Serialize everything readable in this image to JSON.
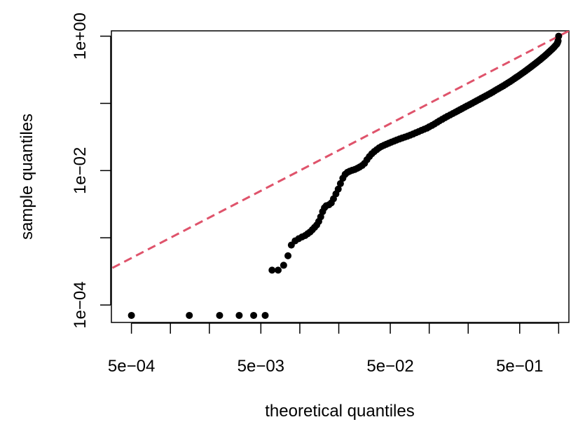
{
  "chart_data": {
    "type": "scatter",
    "title": "",
    "xlabel": "theoretical quantiles",
    "ylabel": "sample quantiles",
    "x_scale": "log10",
    "y_scale": "log10",
    "xlim": [
      0.00035,
      1.2
    ],
    "ylim": [
      5.5e-05,
      1.2
    ],
    "x_ticks": [
      0.0005,
      0.001,
      0.002,
      0.005,
      0.01,
      0.02,
      0.05,
      0.1,
      0.2,
      0.5,
      1
    ],
    "x_tick_labels": [
      {
        "value": 0.0005,
        "label": "5e−04"
      },
      {
        "value": 0.005,
        "label": "5e−03"
      },
      {
        "value": 0.05,
        "label": "5e−02"
      },
      {
        "value": 0.5,
        "label": "5e−01"
      }
    ],
    "y_ticks": [
      0.0001,
      0.001,
      0.01,
      0.1,
      1
    ],
    "y_tick_labels": [
      {
        "value": 0.0001,
        "label": "1e−04"
      },
      {
        "value": 0.01,
        "label": "1e−02"
      },
      {
        "value": 1,
        "label": "1e+00"
      }
    ],
    "grid": false,
    "reference_line": {
      "style": "dashed",
      "color": "#DF536B",
      "slope": 1,
      "intercept": 0
    },
    "point_color": "#000000",
    "points": [
      [
        0.0005,
        7e-05
      ],
      [
        0.0014,
        7e-05
      ],
      [
        0.0024,
        7e-05
      ],
      [
        0.0034,
        7e-05
      ],
      [
        0.0044,
        7e-05
      ],
      [
        0.0054,
        7e-05
      ],
      [
        0.0061,
        0.00033
      ],
      [
        0.0068,
        0.00033
      ],
      [
        0.0075,
        0.00039
      ],
      [
        0.0081,
        0.00054
      ],
      [
        0.0086,
        0.00078
      ],
      [
        0.0092,
        0.0009
      ],
      [
        0.0098,
        0.00097
      ],
      [
        0.0104,
        0.00103
      ],
      [
        0.011,
        0.00108
      ],
      [
        0.0115,
        0.00115
      ],
      [
        0.012,
        0.00122
      ],
      [
        0.0125,
        0.00132
      ],
      [
        0.013,
        0.00143
      ],
      [
        0.0135,
        0.00155
      ],
      [
        0.014,
        0.00175
      ],
      [
        0.0145,
        0.00205
      ],
      [
        0.015,
        0.00245
      ],
      [
        0.0155,
        0.0028
      ],
      [
        0.016,
        0.003
      ],
      [
        0.0168,
        0.0031
      ],
      [
        0.0175,
        0.0033
      ],
      [
        0.0182,
        0.0038
      ],
      [
        0.019,
        0.0045
      ],
      [
        0.0198,
        0.0053
      ],
      [
        0.0206,
        0.0064
      ],
      [
        0.0215,
        0.0077
      ],
      [
        0.0224,
        0.0088
      ],
      [
        0.0233,
        0.0094
      ],
      [
        0.0243,
        0.0098
      ],
      [
        0.0254,
        0.0101
      ],
      [
        0.0266,
        0.0104
      ],
      [
        0.0278,
        0.0108
      ],
      [
        0.029,
        0.0113
      ],
      [
        0.0303,
        0.0119
      ],
      [
        0.0316,
        0.0128
      ],
      [
        0.033,
        0.0145
      ],
      [
        0.0345,
        0.0162
      ],
      [
        0.036,
        0.0178
      ],
      [
        0.0376,
        0.0192
      ],
      [
        0.0393,
        0.0205
      ],
      [
        0.041,
        0.0218
      ],
      [
        0.0428,
        0.0229
      ],
      [
        0.0447,
        0.0238
      ],
      [
        0.0467,
        0.0247
      ],
      [
        0.0488,
        0.0256
      ],
      [
        0.051,
        0.0265
      ],
      [
        0.0535,
        0.0275
      ],
      [
        0.056,
        0.0285
      ],
      [
        0.0588,
        0.0295
      ],
      [
        0.0617,
        0.0305
      ],
      [
        0.0648,
        0.0315
      ],
      [
        0.068,
        0.0325
      ],
      [
        0.0714,
        0.0337
      ],
      [
        0.075,
        0.035
      ],
      [
        0.0788,
        0.0365
      ],
      [
        0.0828,
        0.038
      ],
      [
        0.087,
        0.0396
      ],
      [
        0.0914,
        0.0412
      ],
      [
        0.096,
        0.0428
      ],
      [
        0.1,
        0.0448
      ],
      [
        0.105,
        0.047
      ],
      [
        0.11,
        0.0495
      ],
      [
        0.115,
        0.0522
      ],
      [
        0.12,
        0.055
      ],
      [
        0.126,
        0.058
      ],
      [
        0.132,
        0.061
      ],
      [
        0.138,
        0.064
      ],
      [
        0.145,
        0.0672
      ],
      [
        0.152,
        0.0705
      ],
      [
        0.159,
        0.0738
      ],
      [
        0.166,
        0.0772
      ],
      [
        0.173,
        0.0806
      ],
      [
        0.18,
        0.084
      ],
      [
        0.188,
        0.0878
      ],
      [
        0.196,
        0.0917
      ],
      [
        0.205,
        0.0958
      ],
      [
        0.214,
        0.1
      ],
      [
        0.223,
        0.1045
      ],
      [
        0.232,
        0.109
      ],
      [
        0.242,
        0.1138
      ],
      [
        0.252,
        0.1188
      ],
      [
        0.263,
        0.124
      ],
      [
        0.274,
        0.1295
      ],
      [
        0.285,
        0.135
      ],
      [
        0.297,
        0.141
      ],
      [
        0.309,
        0.147
      ],
      [
        0.321,
        0.154
      ],
      [
        0.334,
        0.161
      ],
      [
        0.347,
        0.168
      ],
      [
        0.361,
        0.1755
      ],
      [
        0.375,
        0.183
      ],
      [
        0.39,
        0.192
      ],
      [
        0.405,
        0.201
      ],
      [
        0.42,
        0.21
      ],
      [
        0.436,
        0.22
      ],
      [
        0.452,
        0.231
      ],
      [
        0.468,
        0.242
      ],
      [
        0.485,
        0.253
      ],
      [
        0.502,
        0.265
      ],
      [
        0.52,
        0.278
      ],
      [
        0.538,
        0.291
      ],
      [
        0.556,
        0.305
      ],
      [
        0.575,
        0.32
      ],
      [
        0.594,
        0.335
      ],
      [
        0.613,
        0.351
      ],
      [
        0.633,
        0.368
      ],
      [
        0.653,
        0.385
      ],
      [
        0.673,
        0.403
      ],
      [
        0.694,
        0.422
      ],
      [
        0.715,
        0.442
      ],
      [
        0.736,
        0.463
      ],
      [
        0.758,
        0.485
      ],
      [
        0.78,
        0.508
      ],
      [
        0.802,
        0.533
      ],
      [
        0.825,
        0.56
      ],
      [
        0.848,
        0.588
      ],
      [
        0.871,
        0.617
      ],
      [
        0.895,
        0.648
      ],
      [
        0.919,
        0.682
      ],
      [
        0.943,
        0.72
      ],
      [
        0.967,
        0.76
      ],
      [
        0.98,
        0.8
      ],
      [
        0.99,
        0.85
      ],
      [
        1.0,
        1.0
      ]
    ]
  }
}
